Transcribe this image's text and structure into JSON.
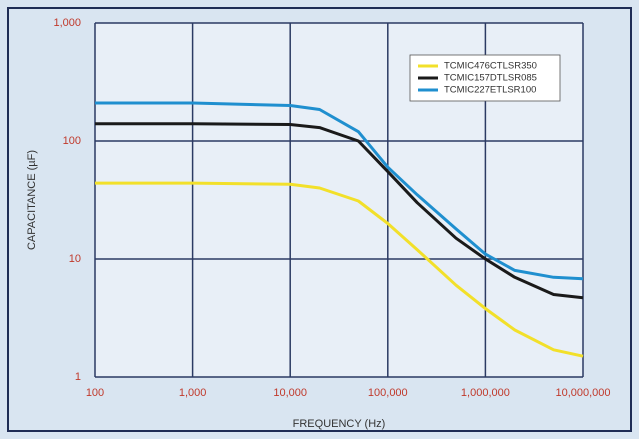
{
  "chart_data": {
    "type": "line",
    "x": [
      100,
      1000,
      10000,
      20000,
      50000,
      100000,
      200000,
      500000,
      1000000,
      2000000,
      5000000,
      10000000
    ],
    "series": [
      {
        "name": "TCMIC476CTLSR350",
        "color": "#f2e02a",
        "values": [
          44,
          44,
          43,
          40,
          31,
          20,
          12,
          6,
          3.8,
          2.5,
          1.7,
          1.5
        ]
      },
      {
        "name": "TCMIC157DTLSR085",
        "color": "#1a1a1a",
        "values": [
          140,
          140,
          138,
          130,
          100,
          55,
          30,
          15,
          10,
          7,
          5,
          4.7
        ]
      },
      {
        "name": "TCMIC227ETLSR100",
        "color": "#1f8fcf",
        "values": [
          210,
          210,
          200,
          185,
          120,
          60,
          35,
          18,
          11,
          8,
          7,
          6.8
        ]
      }
    ],
    "xlabel": "FREQUENCY (Hz)",
    "ylabel": "CAPACITANCE (µF)",
    "xlim": [
      100,
      10000000
    ],
    "ylim": [
      1,
      1000
    ],
    "xticks": [
      100,
      {
        "value": 1000,
        "label": "1,000"
      },
      {
        "value": 10000,
        "label": "10,000"
      },
      {
        "value": 100000,
        "label": "100,000"
      },
      {
        "value": 1000000,
        "label": "1,000,000"
      },
      {
        "value": 10000000,
        "label": "10,000,000"
      }
    ],
    "yticks": [
      1,
      10,
      100,
      {
        "value": 1000,
        "label": "1,000"
      }
    ],
    "xlog": true,
    "ylog": true,
    "grid": true,
    "legend": "upper right"
  }
}
